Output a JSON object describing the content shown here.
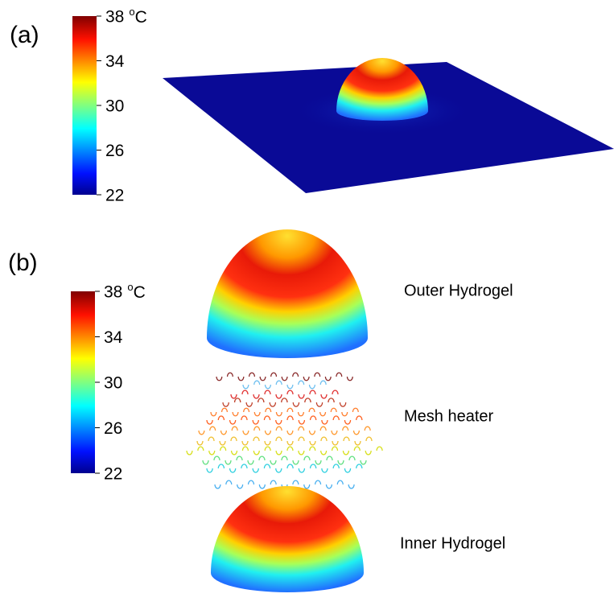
{
  "panels": [
    {
      "label": "(a)",
      "colorbar": {
        "ticks": [
          38,
          34,
          30,
          26,
          22
        ],
        "unit_sup": "o",
        "unit": "C"
      }
    },
    {
      "label": "(b)",
      "colorbar": {
        "ticks": [
          38,
          34,
          30,
          26,
          22
        ],
        "unit_sup": "o",
        "unit": "C"
      },
      "layers": [
        "Outer Hydrogel",
        "Mesh heater",
        "Inner Hydrogel"
      ]
    }
  ]
}
